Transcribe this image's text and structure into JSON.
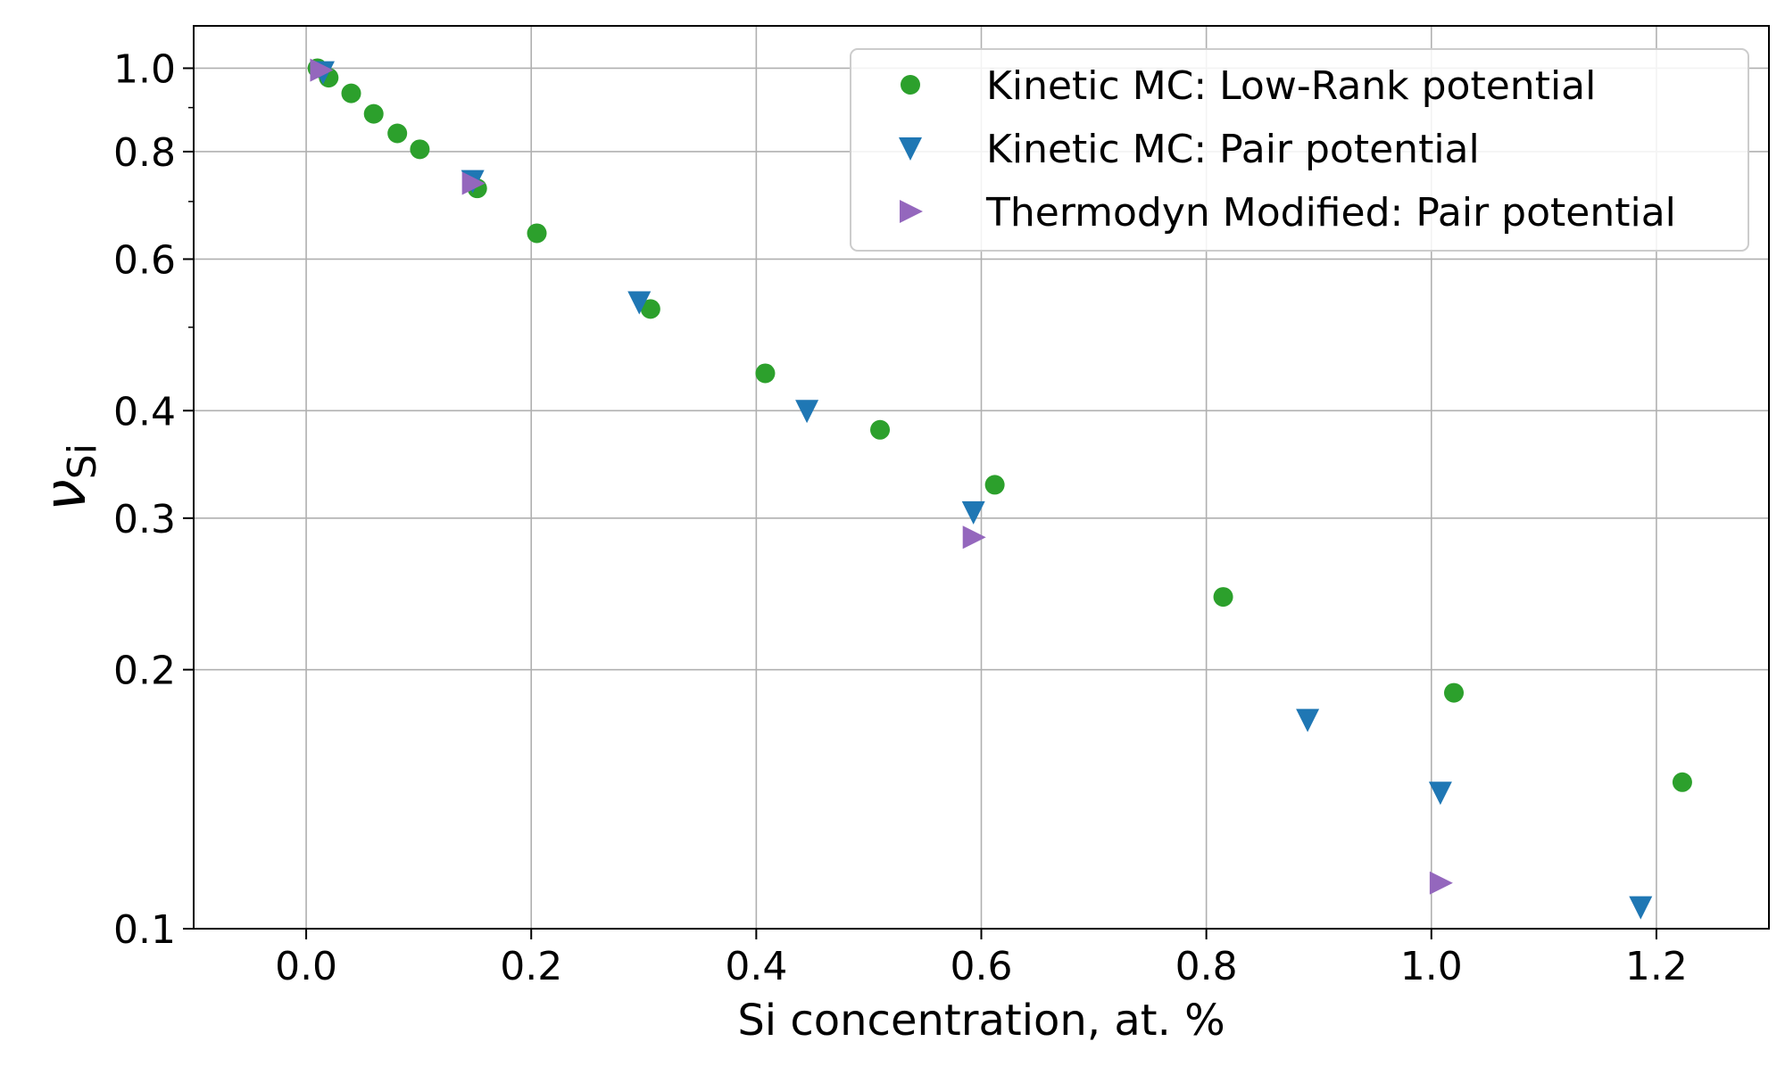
{
  "chart_data": {
    "type": "scatter",
    "title": "",
    "xlabel": "Si concentration, at. %",
    "ylabel_main": "ν",
    "ylabel_sub": "Si",
    "xlim": [
      -0.1,
      1.3
    ],
    "ylim": [
      0.1,
      1.12
    ],
    "yscale": "log",
    "grid": true,
    "legend_position": "top-right",
    "x_ticks": [
      {
        "value": 0.0,
        "label": "0.0"
      },
      {
        "value": 0.2,
        "label": "0.2"
      },
      {
        "value": 0.4,
        "label": "0.4"
      },
      {
        "value": 0.6,
        "label": "0.6"
      },
      {
        "value": 0.8,
        "label": "0.8"
      },
      {
        "value": 1.0,
        "label": "1.0"
      },
      {
        "value": 1.2,
        "label": "1.2"
      }
    ],
    "y_ticks": [
      {
        "value": 0.1,
        "label": "0.1"
      },
      {
        "value": 0.2,
        "label": "0.2"
      },
      {
        "value": 0.3,
        "label": "0.3"
      },
      {
        "value": 0.4,
        "label": "0.4"
      },
      {
        "value": 0.6,
        "label": "0.6"
      },
      {
        "value": 0.8,
        "label": "0.8"
      },
      {
        "value": 1.0,
        "label": "1.0"
      }
    ],
    "y_minor_ticks": [
      0.5,
      0.7,
      0.9
    ],
    "series": [
      {
        "name": "Kinetic MC: Low-Rank potential",
        "marker": "circle",
        "color": "#2ca02c",
        "points": [
          {
            "x": 0.01,
            "y": 1.0
          },
          {
            "x": 0.02,
            "y": 0.975
          },
          {
            "x": 0.04,
            "y": 0.935
          },
          {
            "x": 0.06,
            "y": 0.885
          },
          {
            "x": 0.081,
            "y": 0.84
          },
          {
            "x": 0.101,
            "y": 0.805
          },
          {
            "x": 0.152,
            "y": 0.725
          },
          {
            "x": 0.205,
            "y": 0.643
          },
          {
            "x": 0.306,
            "y": 0.525
          },
          {
            "x": 0.408,
            "y": 0.442
          },
          {
            "x": 0.51,
            "y": 0.38
          },
          {
            "x": 0.612,
            "y": 0.328
          },
          {
            "x": 0.815,
            "y": 0.243
          },
          {
            "x": 1.02,
            "y": 0.188
          },
          {
            "x": 1.223,
            "y": 0.148
          }
        ]
      },
      {
        "name": "Kinetic MC: Pair potential",
        "marker": "triangle-down",
        "color": "#1f77b4",
        "points": [
          {
            "x": 0.015,
            "y": 0.99
          },
          {
            "x": 0.148,
            "y": 0.74
          },
          {
            "x": 0.296,
            "y": 0.535
          },
          {
            "x": 0.445,
            "y": 0.4
          },
          {
            "x": 0.593,
            "y": 0.305
          },
          {
            "x": 0.89,
            "y": 0.175
          },
          {
            "x": 1.008,
            "y": 0.144
          },
          {
            "x": 1.186,
            "y": 0.106
          }
        ]
      },
      {
        "name": "Thermodyn Modified: Pair potential",
        "marker": "triangle-right",
        "color": "#9467bd",
        "points": [
          {
            "x": 0.013,
            "y": 0.995
          },
          {
            "x": 0.148,
            "y": 0.735
          },
          {
            "x": 0.593,
            "y": 0.285
          },
          {
            "x": 1.008,
            "y": 0.113
          }
        ]
      }
    ]
  }
}
